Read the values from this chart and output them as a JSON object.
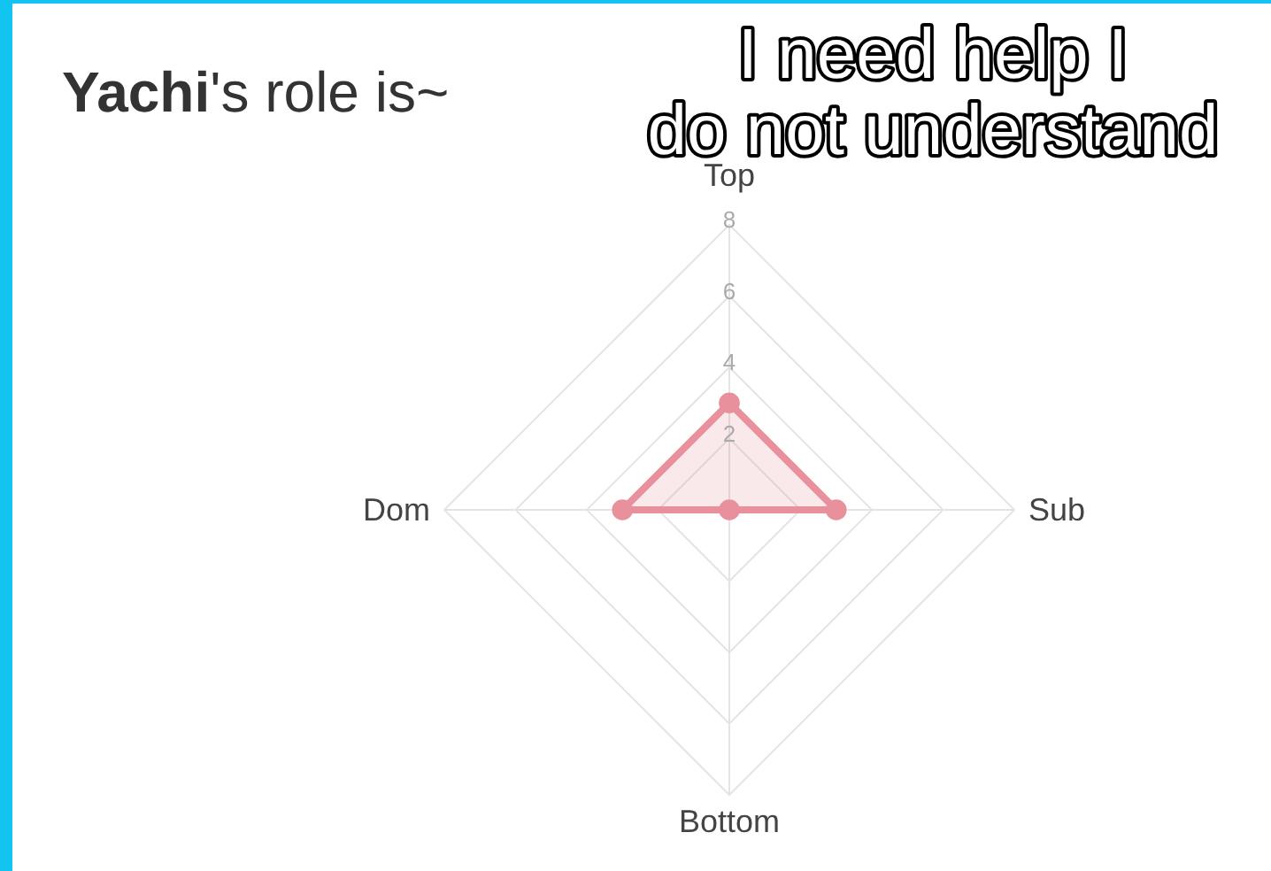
{
  "chart_data": {
    "type": "radar",
    "title": "Yachi's role is~",
    "categories": [
      "Top",
      "Sub",
      "Bottom",
      "Dom"
    ],
    "series": [
      {
        "color": "#e8909b",
        "values": [
          3,
          3,
          0,
          3
        ]
      }
    ],
    "ylim": [
      0,
      8
    ],
    "yticks": [
      2,
      4,
      6,
      8
    ],
    "grid": true,
    "marker": "circle",
    "annotations": [
      "I need help I\ndo not understand"
    ]
  }
}
